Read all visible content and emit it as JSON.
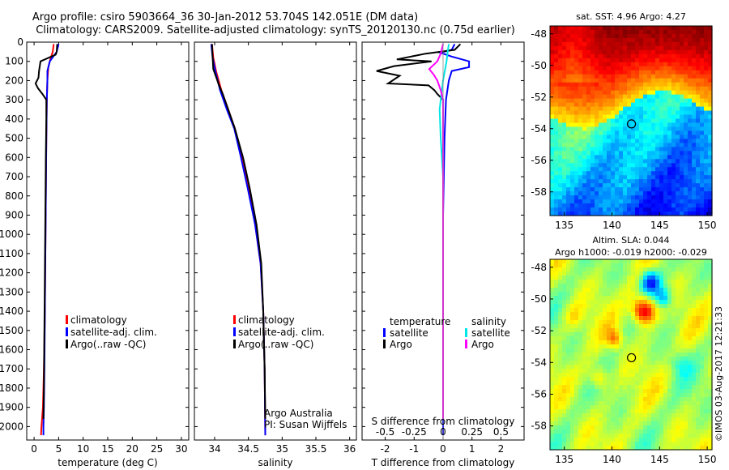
{
  "header": {
    "line1": "Argo profile: csiro 5903664_36 30-Jan-2012 53.704S 142.051E (DM data)",
    "line2": "Climatology: CARS2009. Satellite-adjusted climatology: synTS_20120130.nc (0.75d earlier)"
  },
  "credit": "©IMOS 03-Aug-2017 12:21:33",
  "colors": {
    "climatology": "#ff0000",
    "satellite": "#0000ff",
    "argo": "#000000",
    "salinity_satellite": "#00e5e5",
    "salinity_argo": "#ff00ff"
  },
  "chart_data": [
    {
      "id": "temperature",
      "type": "line",
      "xlabel": "temperature (deg C)",
      "ylabel": "",
      "xlim": [
        -1.5,
        31.5
      ],
      "ylim": [
        2070,
        0
      ],
      "xticks": [
        "0",
        "5",
        "10",
        "15",
        "20",
        "25",
        "30"
      ],
      "yticks": [
        "0",
        "100",
        "200",
        "300",
        "400",
        "500",
        "600",
        "700",
        "800",
        "900",
        "1000",
        "1100",
        "1200",
        "1300",
        "1400",
        "1500",
        "1600",
        "1700",
        "1800",
        "1900",
        "2000"
      ],
      "legend": [
        "climatology",
        "satellite-adj. clim.",
        "Argo(..raw -QC)"
      ],
      "series": [
        {
          "name": "climatology",
          "color": "#ff0000",
          "points": [
            [
              4.0,
              10
            ],
            [
              3.8,
              50
            ],
            [
              3.3,
              90
            ],
            [
              2.9,
              130
            ],
            [
              2.7,
              200
            ],
            [
              2.6,
              300
            ],
            [
              2.5,
              500
            ],
            [
              2.4,
              800
            ],
            [
              2.3,
              1100
            ],
            [
              2.2,
              1400
            ],
            [
              2.0,
              1700
            ],
            [
              1.8,
              1900
            ],
            [
              1.5,
              2000
            ],
            [
              1.4,
              2045
            ]
          ]
        },
        {
          "name": "satellite-adj. clim.",
          "color": "#0000ff",
          "points": [
            [
              5.0,
              10
            ],
            [
              4.6,
              50
            ],
            [
              3.2,
              100
            ],
            [
              2.7,
              150
            ],
            [
              2.7,
              200
            ],
            [
              2.6,
              300
            ],
            [
              2.5,
              500
            ],
            [
              2.4,
              800
            ],
            [
              2.3,
              1100
            ],
            [
              2.2,
              1400
            ],
            [
              2.1,
              1700
            ],
            [
              2.0,
              1900
            ],
            [
              1.9,
              2000
            ],
            [
              1.9,
              2045
            ]
          ]
        },
        {
          "name": "Argo(..raw -QC)",
          "color": "#000000",
          "points": [
            [
              4.7,
              10
            ],
            [
              4.6,
              50
            ],
            [
              4.4,
              65
            ],
            [
              1.3,
              100
            ],
            [
              1.0,
              150
            ],
            [
              0.9,
              185
            ],
            [
              0.3,
              215
            ],
            [
              0.8,
              240
            ],
            [
              1.7,
              270
            ],
            [
              2.5,
              300
            ],
            [
              2.5,
              400
            ],
            [
              2.4,
              600
            ],
            [
              2.3,
              900
            ],
            [
              2.2,
              1200
            ],
            [
              2.1,
              1500
            ],
            [
              2.0,
              1800
            ],
            [
              1.9,
              1960
            ]
          ]
        }
      ]
    },
    {
      "id": "salinity",
      "type": "line",
      "xlabel": "salinity",
      "xlim": [
        33.7,
        36.1
      ],
      "ylim": [
        2070,
        0
      ],
      "xticks": [
        "34",
        "34.5",
        "35",
        "35.5",
        "36"
      ],
      "legend": [
        "climatology",
        "satellite-adj. clim.",
        "Argo(..raw -QC)"
      ],
      "annotation": [
        "Argo Australia",
        "PI: Susan Wijffels"
      ],
      "series": [
        {
          "name": "climatology",
          "color": "#ff0000",
          "points": [
            [
              33.96,
              10
            ],
            [
              33.98,
              80
            ],
            [
              34.02,
              150
            ],
            [
              34.1,
              250
            ],
            [
              34.2,
              350
            ],
            [
              34.3,
              450
            ],
            [
              34.4,
              600
            ],
            [
              34.5,
              760
            ],
            [
              34.6,
              950
            ],
            [
              34.68,
              1150
            ],
            [
              34.72,
              1400
            ],
            [
              34.74,
              1700
            ],
            [
              34.75,
              2045
            ]
          ]
        },
        {
          "name": "satellite-adj. clim.",
          "color": "#0000ff",
          "points": [
            [
              33.95,
              10
            ],
            [
              33.97,
              80
            ],
            [
              34.01,
              150
            ],
            [
              34.08,
              250
            ],
            [
              34.18,
              350
            ],
            [
              34.29,
              450
            ],
            [
              34.39,
              600
            ],
            [
              34.49,
              760
            ],
            [
              34.6,
              950
            ],
            [
              34.68,
              1150
            ],
            [
              34.72,
              1400
            ],
            [
              34.74,
              1700
            ],
            [
              34.75,
              2045
            ]
          ]
        },
        {
          "name": "Argo(..raw -QC)",
          "color": "#000000",
          "points": [
            [
              33.96,
              10
            ],
            [
              33.97,
              80
            ],
            [
              33.98,
              140
            ],
            [
              34.02,
              180
            ],
            [
              34.06,
              220
            ],
            [
              34.12,
              270
            ],
            [
              34.2,
              350
            ],
            [
              34.3,
              450
            ],
            [
              34.42,
              600
            ],
            [
              34.52,
              760
            ],
            [
              34.62,
              950
            ],
            [
              34.69,
              1150
            ],
            [
              34.72,
              1400
            ],
            [
              34.74,
              1700
            ],
            [
              34.75,
              1960
            ]
          ]
        }
      ]
    },
    {
      "id": "differences",
      "type": "line",
      "xlabel": "T difference from climatology",
      "x2label": "S difference from climatology",
      "xlim": [
        -2.8,
        2.8
      ],
      "ylim": [
        2070,
        0
      ],
      "xticks": [
        "-2",
        "-1",
        "0",
        "1",
        "2"
      ],
      "x2ticks": [
        "-0.5",
        "-0.25",
        "0",
        "0.25",
        "0.5"
      ],
      "legend_temperature": {
        "title": "temperature",
        "items": [
          "satellite",
          "Argo"
        ]
      },
      "legend_salinity": {
        "title": "salinity",
        "items": [
          "satellite",
          "Argo"
        ]
      },
      "series": [
        {
          "name": "T satellite",
          "color": "#0000ff",
          "points": [
            [
              0.4,
              10
            ],
            [
              0.3,
              40
            ],
            [
              -0.1,
              55
            ],
            [
              0.3,
              75
            ],
            [
              0.9,
              100
            ],
            [
              0.9,
              130
            ],
            [
              0.3,
              150
            ],
            [
              0.2,
              200
            ],
            [
              0.1,
              300
            ],
            [
              0.05,
              500
            ],
            [
              0.0,
              900
            ],
            [
              0.0,
              1500
            ],
            [
              0.0,
              2045
            ]
          ]
        },
        {
          "name": "T Argo",
          "color": "#000000",
          "points": [
            [
              0.6,
              10
            ],
            [
              0.4,
              40
            ],
            [
              -0.6,
              60
            ],
            [
              -1.6,
              90
            ],
            [
              -0.4,
              100
            ],
            [
              -1.7,
              125
            ],
            [
              -2.3,
              150
            ],
            [
              -1.5,
              175
            ],
            [
              -1.9,
              215
            ],
            [
              -0.5,
              225
            ],
            [
              -0.3,
              250
            ],
            [
              -0.2,
              270
            ],
            [
              0.0,
              300
            ],
            [
              0.0,
              600
            ],
            [
              0.0,
              1200
            ],
            [
              0.0,
              1800
            ],
            [
              0.0,
              1960
            ]
          ]
        },
        {
          "name": "S satellite",
          "color": "#00e5e5",
          "points": [
            [
              0.05,
              10
            ],
            [
              0.04,
              50
            ],
            [
              0.03,
              100
            ],
            [
              0.0,
              200
            ],
            [
              -0.03,
              350
            ],
            [
              -0.02,
              500
            ],
            [
              0.0,
              700
            ],
            [
              0.0,
              1000
            ],
            [
              0.0,
              1100
            ]
          ]
        },
        {
          "name": "S Argo",
          "color": "#ff00ff",
          "points": [
            [
              0.0,
              10
            ],
            [
              -0.02,
              60
            ],
            [
              -0.05,
              100
            ],
            [
              -0.12,
              140
            ],
            [
              -0.08,
              170
            ],
            [
              -0.05,
              200
            ],
            [
              -0.02,
              250
            ],
            [
              0.0,
              300
            ],
            [
              0.0,
              600
            ],
            [
              0.0,
              1200
            ],
            [
              0.0,
              1800
            ],
            [
              0.0,
              1960
            ]
          ]
        }
      ]
    },
    {
      "id": "sst_map",
      "type": "heatmap",
      "title": "sat. SST: 4.96 Argo: 4.27",
      "xticks": [
        "135",
        "140",
        "145",
        "150"
      ],
      "yticks": [
        "-48",
        "-50",
        "-52",
        "-54",
        "-56",
        "-58"
      ],
      "xlim": [
        133.5,
        150.5
      ],
      "ylim": [
        -59.5,
        -47.5
      ],
      "marker": [
        142.05,
        -53.7
      ]
    },
    {
      "id": "sla_map",
      "type": "heatmap",
      "title": "Altim. SLA: 0.044",
      "subtitle": "Argo h1000: -0.019 h2000: -0.029",
      "xticks": [
        "135",
        "140",
        "145",
        "150"
      ],
      "yticks": [
        "-48",
        "-50",
        "-52",
        "-54",
        "-56",
        "-58"
      ],
      "xlim": [
        133.5,
        150.5
      ],
      "ylim": [
        -59.5,
        -47.5
      ],
      "marker": [
        142.05,
        -53.7
      ]
    }
  ]
}
